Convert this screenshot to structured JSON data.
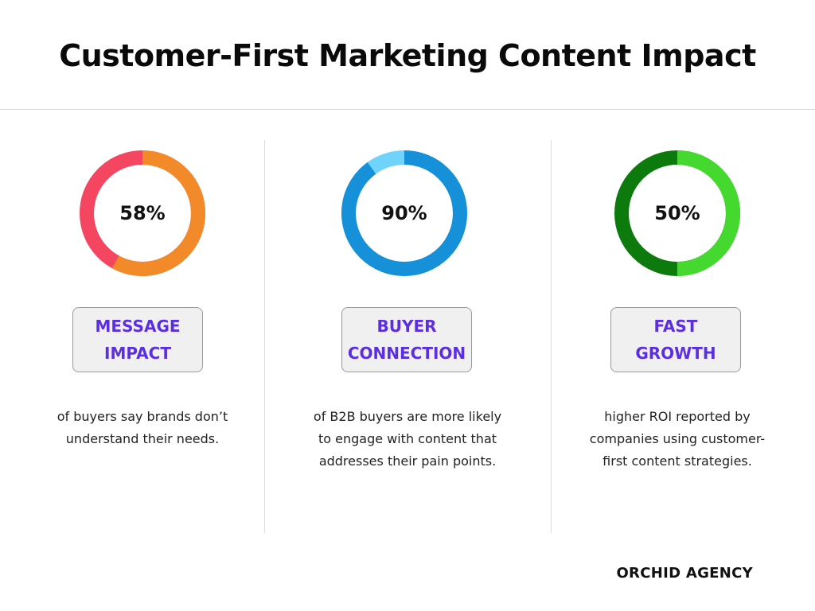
{
  "title": "Customer-First Marketing Content Impact",
  "brand": "ORCHID AGENCY",
  "chart_data": [
    {
      "type": "pie",
      "donut": true,
      "value": 58,
      "label": "58%",
      "heading": [
        "MESSAGE",
        "IMPACT"
      ],
      "description": "of buyers say brands don’t understand their needs.",
      "colors": {
        "value": "#f28a2a",
        "remainder": "#f44561"
      }
    },
    {
      "type": "pie",
      "donut": true,
      "value": 90,
      "label": "90%",
      "heading": [
        "BUYER",
        "CONNECTION"
      ],
      "description": "of B2B buyers are more likely to engage with content that addresses their pain points.",
      "colors": {
        "value": "#1690d9",
        "remainder": "#6fd3fb"
      }
    },
    {
      "type": "pie",
      "donut": true,
      "value": 50,
      "label": "50%",
      "heading": [
        "FAST",
        "GROWTH"
      ],
      "description": "higher ROI reported by companies using customer-first content strategies.",
      "colors": {
        "value": "#45d92f",
        "remainder": "#0d7a0d"
      }
    }
  ]
}
